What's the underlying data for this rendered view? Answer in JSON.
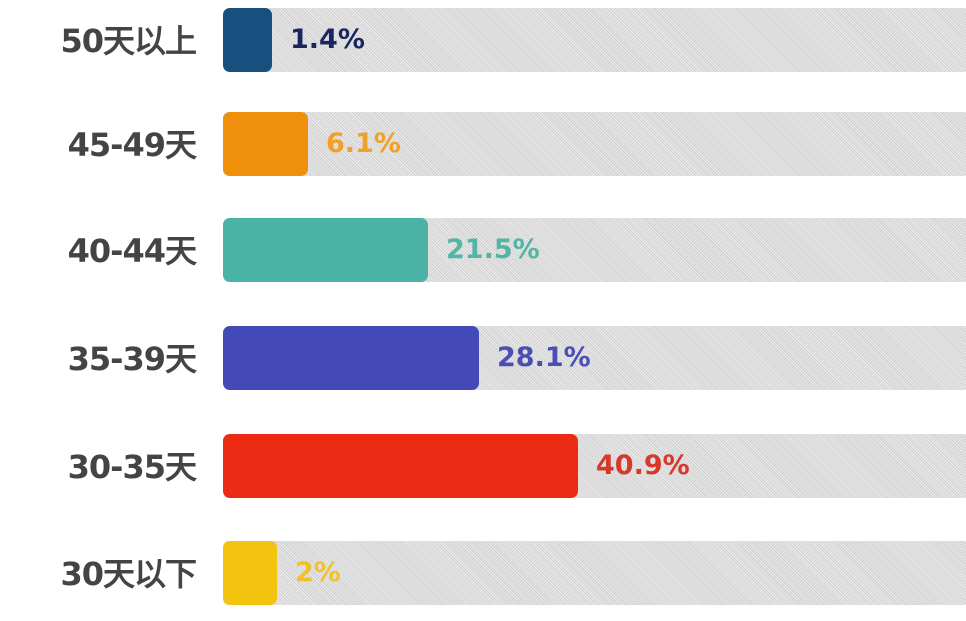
{
  "chart_data": {
    "type": "bar",
    "orientation": "horizontal",
    "title": "",
    "xlabel": "",
    "ylabel": "",
    "categories": [
      "50天以上",
      "45-49天",
      "40-44天",
      "35-39天",
      "30-35天",
      "30天以下"
    ],
    "values": [
      1.4,
      6.1,
      21.5,
      28.1,
      40.9,
      2
    ],
    "data_labels": [
      "1.4%",
      "6.1%",
      "21.5%",
      "28.1%",
      "40.9%",
      "2%"
    ],
    "unit": "%",
    "grid": false,
    "bar_colors": [
      "#17507e",
      "#f0900a",
      "#4bb3a5",
      "#4449b8",
      "#ec2b14",
      "#f3c30f"
    ],
    "label_colors": [
      "#1b2660",
      "#f0a028",
      "#52b5a6",
      "#4a4fb4",
      "#d8382a",
      "#efc22a"
    ],
    "track_color": "#e2e2e2"
  }
}
